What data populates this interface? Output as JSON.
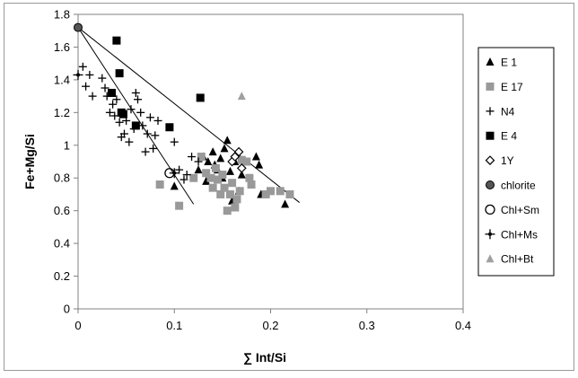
{
  "chart_data": {
    "type": "scatter",
    "xlabel": "∑ Int/Si",
    "ylabel": "Fe+Mg/Si",
    "xlim": [
      0,
      0.4
    ],
    "ylim": [
      0,
      1.8
    ],
    "x_ticks": [
      0,
      0.1,
      0.2,
      0.3,
      0.4
    ],
    "x_tick_labels": [
      "0",
      "0.1",
      "0.2",
      "0.3",
      "0.4"
    ],
    "y_ticks": [
      0,
      0.2,
      0.4,
      0.6,
      0.8,
      1,
      1.2,
      1.4,
      1.6,
      1.8
    ],
    "y_tick_labels": [
      "0",
      "0.2",
      "0.4",
      "0.6",
      "0.8",
      "1",
      "1.2",
      "1.4",
      "1.6",
      "1.8"
    ],
    "grid": false,
    "legend_position": "right",
    "series": [
      {
        "name": "E 1",
        "marker": "triangle",
        "color": "#000000",
        "points": [
          [
            0.1,
            0.75
          ],
          [
            0.125,
            0.85
          ],
          [
            0.13,
            0.93
          ],
          [
            0.133,
            0.78
          ],
          [
            0.135,
            0.9
          ],
          [
            0.14,
            0.96
          ],
          [
            0.142,
            0.88
          ],
          [
            0.145,
            0.85
          ],
          [
            0.148,
            0.92
          ],
          [
            0.15,
            0.8
          ],
          [
            0.152,
            0.98
          ],
          [
            0.155,
            1.03
          ],
          [
            0.158,
            0.84
          ],
          [
            0.16,
            0.66
          ],
          [
            0.163,
            0.9
          ],
          [
            0.167,
            0.72
          ],
          [
            0.17,
            0.82
          ],
          [
            0.185,
            0.93
          ],
          [
            0.188,
            0.88
          ],
          [
            0.19,
            0.7
          ],
          [
            0.215,
            0.64
          ]
        ]
      },
      {
        "name": "E 17",
        "marker": "square",
        "color": "#999999",
        "points": [
          [
            0.085,
            0.76
          ],
          [
            0.105,
            0.63
          ],
          [
            0.12,
            0.8
          ],
          [
            0.128,
            0.93
          ],
          [
            0.133,
            0.83
          ],
          [
            0.138,
            0.8
          ],
          [
            0.14,
            0.74
          ],
          [
            0.143,
            0.86
          ],
          [
            0.145,
            0.79
          ],
          [
            0.148,
            0.7
          ],
          [
            0.15,
            0.82
          ],
          [
            0.152,
            0.74
          ],
          [
            0.155,
            0.6
          ],
          [
            0.158,
            0.7
          ],
          [
            0.16,
            0.77
          ],
          [
            0.163,
            0.62
          ],
          [
            0.165,
            0.67
          ],
          [
            0.168,
            0.72
          ],
          [
            0.17,
            0.91
          ],
          [
            0.175,
            0.9
          ],
          [
            0.178,
            0.8
          ],
          [
            0.18,
            0.76
          ],
          [
            0.195,
            0.7
          ],
          [
            0.2,
            0.72
          ],
          [
            0.21,
            0.72
          ],
          [
            0.22,
            0.7
          ]
        ]
      },
      {
        "name": "N4",
        "marker": "plus",
        "color": "#000000",
        "points": [
          [
            0.005,
            1.48
          ],
          [
            0.008,
            1.36
          ],
          [
            0.012,
            1.43
          ],
          [
            0.015,
            1.3
          ],
          [
            0.025,
            1.41
          ],
          [
            0.028,
            1.35
          ],
          [
            0.03,
            1.3
          ],
          [
            0.033,
            1.2
          ],
          [
            0.036,
            1.25
          ],
          [
            0.038,
            1.18
          ],
          [
            0.04,
            1.28
          ],
          [
            0.043,
            1.14
          ],
          [
            0.045,
            1.05
          ],
          [
            0.048,
            1.07
          ],
          [
            0.05,
            1.15
          ],
          [
            0.053,
            1.02
          ],
          [
            0.055,
            1.22
          ],
          [
            0.058,
            1.1
          ],
          [
            0.06,
            1.32
          ],
          [
            0.062,
            1.28
          ],
          [
            0.065,
            1.2
          ],
          [
            0.067,
            1.12
          ],
          [
            0.07,
            0.96
          ],
          [
            0.072,
            1.07
          ],
          [
            0.075,
            1.17
          ],
          [
            0.078,
            0.98
          ],
          [
            0.08,
            1.06
          ],
          [
            0.083,
            1.15
          ],
          [
            0.1,
            1.02
          ],
          [
            0.105,
            0.85
          ],
          [
            0.11,
            0.79
          ],
          [
            0.113,
            0.82
          ],
          [
            0.118,
            0.93
          ],
          [
            0.125,
            0.9
          ]
        ]
      },
      {
        "name": "E 4",
        "marker": "square",
        "color": "#000000",
        "points": [
          [
            0.04,
            1.64
          ],
          [
            0.043,
            1.44
          ],
          [
            0.045,
            1.2
          ],
          [
            0.047,
            1.19
          ],
          [
            0.035,
            1.32
          ],
          [
            0.06,
            1.12
          ],
          [
            0.095,
            1.11
          ],
          [
            0.127,
            1.29
          ]
        ]
      },
      {
        "name": "1Y",
        "marker": "diamond-open",
        "color": "#000000",
        "points": [
          [
            0.16,
            0.9
          ],
          [
            0.163,
            0.93
          ],
          [
            0.167,
            0.96
          ],
          [
            0.17,
            0.86
          ]
        ]
      },
      {
        "name": "chlorite",
        "marker": "circle",
        "color": "#000000",
        "points": [
          [
            0.0,
            1.72
          ]
        ]
      },
      {
        "name": "Chl+Sm",
        "marker": "circle-open",
        "color": "#000000",
        "points": [
          [
            0.095,
            0.83
          ]
        ]
      },
      {
        "name": "Chl+Ms",
        "marker": "star",
        "color": "#000000",
        "points": [
          [
            0.0,
            1.43
          ],
          [
            0.1,
            0.83
          ]
        ]
      },
      {
        "name": "Chl+Bt",
        "marker": "triangle",
        "color": "#a0a0a0",
        "points": [
          [
            0.17,
            1.3
          ]
        ]
      }
    ],
    "mixing_lines": [
      {
        "from": [
          0.0,
          1.72
        ],
        "to": [
          0.12,
          0.64
        ]
      },
      {
        "from": [
          0.0,
          1.72
        ],
        "to": [
          0.23,
          0.65
        ]
      }
    ]
  }
}
